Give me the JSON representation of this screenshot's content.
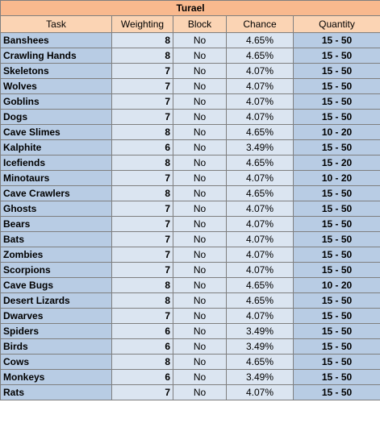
{
  "title": "Turael",
  "headers": {
    "task": "Task",
    "weighting": "Weighting",
    "block": "Block",
    "chance": "Chance",
    "quantity": "Quantity"
  },
  "rows": [
    {
      "task": "Banshees",
      "weighting": "8",
      "block": "No",
      "chance": "4.65%",
      "quantity": "15 - 50"
    },
    {
      "task": "Crawling Hands",
      "weighting": "8",
      "block": "No",
      "chance": "4.65%",
      "quantity": "15 - 50"
    },
    {
      "task": "Skeletons",
      "weighting": "7",
      "block": "No",
      "chance": "4.07%",
      "quantity": "15 - 50"
    },
    {
      "task": "Wolves",
      "weighting": "7",
      "block": "No",
      "chance": "4.07%",
      "quantity": "15 - 50"
    },
    {
      "task": "Goblins",
      "weighting": "7",
      "block": "No",
      "chance": "4.07%",
      "quantity": "15 - 50"
    },
    {
      "task": "Dogs",
      "weighting": "7",
      "block": "No",
      "chance": "4.07%",
      "quantity": "15 - 50"
    },
    {
      "task": "Cave Slimes",
      "weighting": "8",
      "block": "No",
      "chance": "4.65%",
      "quantity": "10 - 20"
    },
    {
      "task": "Kalphite",
      "weighting": "6",
      "block": "No",
      "chance": "3.49%",
      "quantity": "15 - 50"
    },
    {
      "task": "Icefiends",
      "weighting": "8",
      "block": "No",
      "chance": "4.65%",
      "quantity": "15 - 20"
    },
    {
      "task": "Minotaurs",
      "weighting": "7",
      "block": "No",
      "chance": "4.07%",
      "quantity": "10 - 20"
    },
    {
      "task": "Cave Crawlers",
      "weighting": "8",
      "block": "No",
      "chance": "4.65%",
      "quantity": "15 - 50"
    },
    {
      "task": "Ghosts",
      "weighting": "7",
      "block": "No",
      "chance": "4.07%",
      "quantity": "15 - 50"
    },
    {
      "task": "Bears",
      "weighting": "7",
      "block": "No",
      "chance": "4.07%",
      "quantity": "15 - 50"
    },
    {
      "task": "Bats",
      "weighting": "7",
      "block": "No",
      "chance": "4.07%",
      "quantity": "15 - 50"
    },
    {
      "task": "Zombies",
      "weighting": "7",
      "block": "No",
      "chance": "4.07%",
      "quantity": "15 - 50"
    },
    {
      "task": "Scorpions",
      "weighting": "7",
      "block": "No",
      "chance": "4.07%",
      "quantity": "15 - 50"
    },
    {
      "task": "Cave Bugs",
      "weighting": "8",
      "block": "No",
      "chance": "4.65%",
      "quantity": "10 - 20"
    },
    {
      "task": "Desert Lizards",
      "weighting": "8",
      "block": "No",
      "chance": "4.65%",
      "quantity": "15 - 50"
    },
    {
      "task": "Dwarves",
      "weighting": "7",
      "block": "No",
      "chance": "4.07%",
      "quantity": "15 - 50"
    },
    {
      "task": "Spiders",
      "weighting": "6",
      "block": "No",
      "chance": "3.49%",
      "quantity": "15 - 50"
    },
    {
      "task": "Birds",
      "weighting": "6",
      "block": "No",
      "chance": "3.49%",
      "quantity": "15 - 50"
    },
    {
      "task": "Cows",
      "weighting": "8",
      "block": "No",
      "chance": "4.65%",
      "quantity": "15 - 50"
    },
    {
      "task": "Monkeys",
      "weighting": "6",
      "block": "No",
      "chance": "3.49%",
      "quantity": "15 - 50"
    },
    {
      "task": "Rats",
      "weighting": "7",
      "block": "No",
      "chance": "4.07%",
      "quantity": "15 - 50"
    }
  ],
  "colors": {
    "title_bg": "#f9b98e",
    "header_bg": "#fbd4b4",
    "task_bg": "#b8cce4",
    "value_bg": "#dbe5f1",
    "border": "#7f7f7f"
  }
}
